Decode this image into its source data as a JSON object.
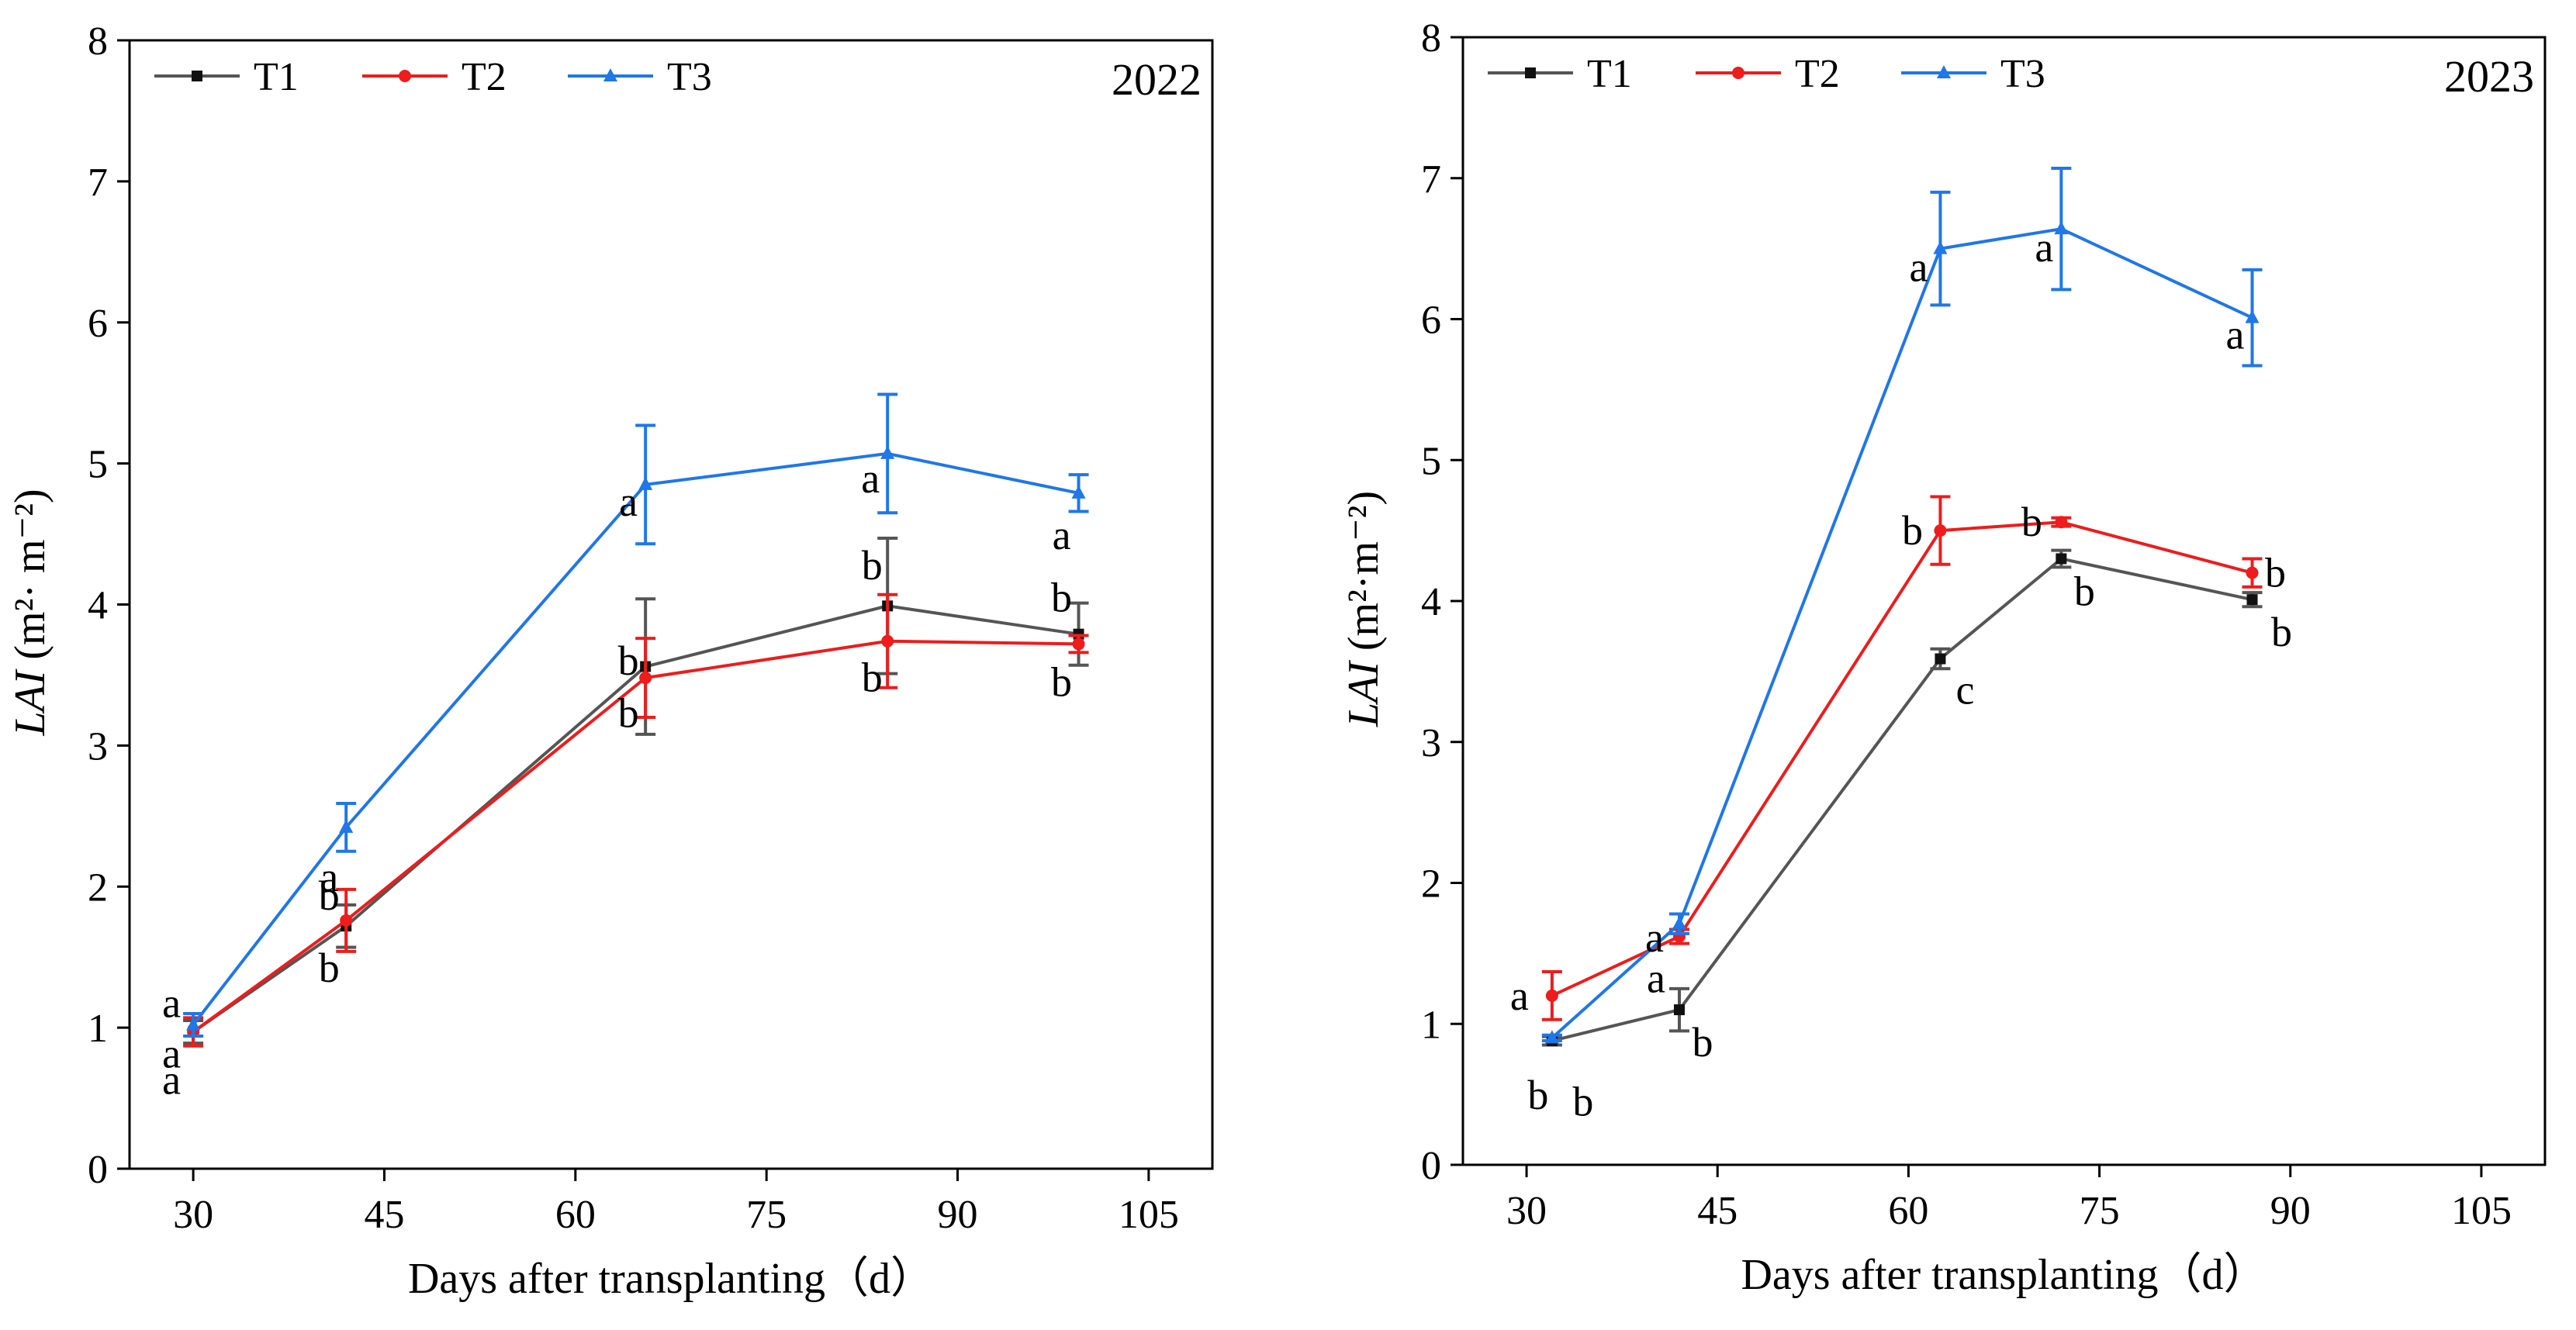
{
  "chart_data": [
    {
      "type": "line",
      "year_label": "2022",
      "xlabel": "Days after transplanting（d）",
      "ylabel_main": "LAI",
      "ylabel_units": "(m²· m⁻²)",
      "xlim": [
        25,
        110
      ],
      "ylim": [
        0,
        8
      ],
      "xticks": [
        30,
        45,
        60,
        75,
        90,
        105
      ],
      "yticks": [
        0,
        1,
        2,
        3,
        4,
        5,
        6,
        7,
        8
      ],
      "legend": [
        "T1",
        "T2",
        "T3"
      ],
      "series": [
        {
          "name": "T1",
          "color": "#555555",
          "marker": "square",
          "x": [
            30,
            42,
            65.5,
            84.5,
            99.5
          ],
          "y": [
            0.97,
            1.72,
            3.56,
            3.99,
            3.79
          ],
          "err": [
            0.08,
            0.15,
            0.48,
            0.48,
            0.22
          ],
          "labels": [
            "a",
            "b",
            "b",
            "b",
            "b"
          ]
        },
        {
          "name": "T2",
          "color": "#ee1c1c",
          "marker": "circle",
          "x": [
            30,
            42,
            65.5,
            84.5,
            99.5
          ],
          "y": [
            0.97,
            1.76,
            3.48,
            3.74,
            3.72
          ],
          "err": [
            0.1,
            0.22,
            0.28,
            0.33,
            0.06
          ],
          "labels": [
            "a",
            "b",
            "b",
            "b",
            "b"
          ]
        },
        {
          "name": "T3",
          "color": "#1f77e8",
          "marker": "triangle",
          "x": [
            30,
            42,
            65.5,
            84.5,
            99.5
          ],
          "y": [
            1.02,
            2.42,
            4.85,
            5.07,
            4.79
          ],
          "err": [
            0.08,
            0.17,
            0.42,
            0.42,
            0.13
          ],
          "labels": [
            "a",
            "a",
            "a",
            "a",
            "a"
          ]
        }
      ]
    },
    {
      "type": "line",
      "year_label": "2023",
      "xlabel": "Days after transplanting（d）",
      "ylabel_main": "LAI",
      "ylabel_units": "(m²·m⁻²)",
      "xlim": [
        25,
        110
      ],
      "ylim": [
        0,
        8
      ],
      "xticks": [
        30,
        45,
        60,
        75,
        90,
        105
      ],
      "yticks": [
        0,
        1,
        2,
        3,
        4,
        5,
        6,
        7,
        8
      ],
      "legend": [
        "T1",
        "T2",
        "T3"
      ],
      "series": [
        {
          "name": "T1",
          "color": "#555555",
          "marker": "square",
          "x": [
            32,
            42,
            62.5,
            72,
            87
          ],
          "y": [
            0.88,
            1.1,
            3.59,
            4.3,
            4.01
          ],
          "err": [
            0.03,
            0.15,
            0.07,
            0.06,
            0.05
          ],
          "labels": [
            "b",
            "b",
            "c",
            "b",
            "b"
          ]
        },
        {
          "name": "T2",
          "color": "#ee1c1c",
          "marker": "circle",
          "x": [
            32,
            42,
            62.5,
            72,
            87
          ],
          "y": [
            1.2,
            1.62,
            4.5,
            4.56,
            4.2
          ],
          "err": [
            0.17,
            0.05,
            0.24,
            0.03,
            0.1
          ],
          "labels": [
            "a",
            "a",
            "b",
            "b",
            "b"
          ]
        },
        {
          "name": "T3",
          "color": "#1f77e8",
          "marker": "triangle",
          "x": [
            32,
            42,
            62.5,
            72,
            87
          ],
          "y": [
            0.9,
            1.71,
            6.5,
            6.64,
            6.01
          ],
          "err": [
            0.02,
            0.07,
            0.4,
            0.43,
            0.34
          ],
          "labels": [
            "b",
            "a",
            "a",
            "a",
            "a"
          ]
        }
      ]
    }
  ]
}
